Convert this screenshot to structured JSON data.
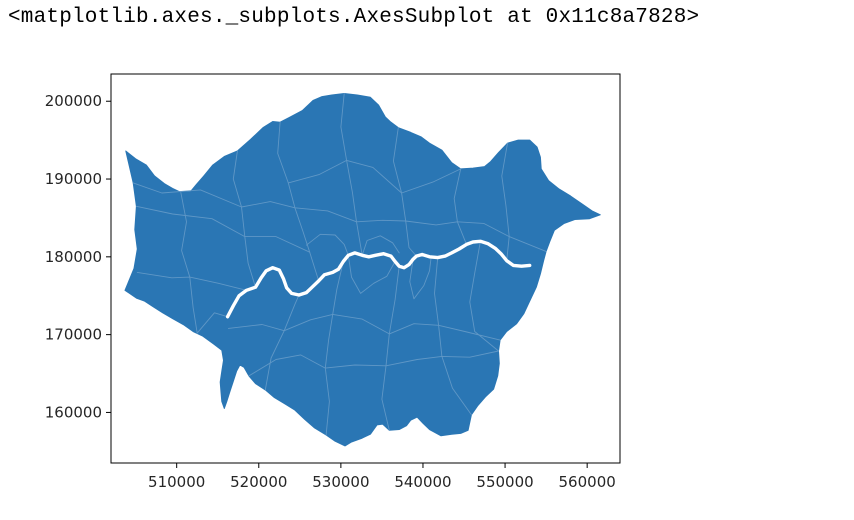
{
  "output": {
    "repr_text": "<matplotlib.axes._subplots.AxesSubplot at 0x11c8a7828>"
  },
  "colors": {
    "fill": "#2a76b4",
    "river": "#ffffff",
    "boundaries": "#5f97c6",
    "axes": "#000000",
    "tick_text": "#262626"
  },
  "chart_data": {
    "type": "map",
    "subject": "polygon map (matplotlib geopandas plot)",
    "xlim": [
      502000,
      564000
    ],
    "ylim": [
      153500,
      203500
    ],
    "x_ticks": [
      510000,
      520000,
      530000,
      540000,
      550000,
      560000
    ],
    "x_tick_labels": [
      "510000",
      "520000",
      "530000",
      "540000",
      "550000",
      "560000"
    ],
    "y_ticks": [
      160000,
      170000,
      180000,
      190000,
      200000
    ],
    "y_tick_labels": [
      "160000",
      "170000",
      "180000",
      "190000",
      "200000"
    ],
    "grid": false,
    "legend": "none",
    "outline": [
      [
        503700,
        175700
      ],
      [
        504800,
        178500
      ],
      [
        505200,
        181000
      ],
      [
        504900,
        183500
      ],
      [
        505100,
        186500
      ],
      [
        504700,
        189500
      ],
      [
        503800,
        193600
      ],
      [
        505000,
        192600
      ],
      [
        506300,
        191800
      ],
      [
        507300,
        190400
      ],
      [
        508500,
        189400
      ],
      [
        509500,
        188800
      ],
      [
        510500,
        188300
      ],
      [
        511700,
        188400
      ],
      [
        512400,
        189300
      ],
      [
        513300,
        190400
      ],
      [
        514400,
        191800
      ],
      [
        515800,
        192900
      ],
      [
        517400,
        193600
      ],
      [
        519000,
        195100
      ],
      [
        520500,
        196600
      ],
      [
        521700,
        197400
      ],
      [
        522600,
        197300
      ],
      [
        523700,
        197900
      ],
      [
        525300,
        198800
      ],
      [
        526600,
        200100
      ],
      [
        527700,
        200600
      ],
      [
        528900,
        200800
      ],
      [
        530400,
        201000
      ],
      [
        532000,
        200800
      ],
      [
        533600,
        200500
      ],
      [
        534600,
        199500
      ],
      [
        535400,
        198000
      ],
      [
        536000,
        197400
      ],
      [
        537000,
        196600
      ],
      [
        538500,
        196000
      ],
      [
        539800,
        195400
      ],
      [
        540800,
        194600
      ],
      [
        542300,
        193700
      ],
      [
        543500,
        192100
      ],
      [
        544600,
        191300
      ],
      [
        546100,
        191400
      ],
      [
        547500,
        191600
      ],
      [
        548200,
        192200
      ],
      [
        549200,
        193400
      ],
      [
        550300,
        194600
      ],
      [
        551600,
        195000
      ],
      [
        553000,
        195000
      ],
      [
        553900,
        194100
      ],
      [
        554300,
        192800
      ],
      [
        554400,
        191300
      ],
      [
        555300,
        189800
      ],
      [
        556600,
        188700
      ],
      [
        558000,
        187800
      ],
      [
        559500,
        186700
      ],
      [
        560600,
        185900
      ],
      [
        561600,
        185400
      ],
      [
        560300,
        184900
      ],
      [
        558500,
        184800
      ],
      [
        557200,
        184300
      ],
      [
        556000,
        183400
      ],
      [
        555500,
        182100
      ],
      [
        555000,
        180700
      ],
      [
        554700,
        179500
      ],
      [
        554300,
        177800
      ],
      [
        553800,
        176100
      ],
      [
        553000,
        174300
      ],
      [
        552300,
        172700
      ],
      [
        551400,
        171400
      ],
      [
        550200,
        170400
      ],
      [
        549400,
        169300
      ],
      [
        549200,
        167900
      ],
      [
        549300,
        166300
      ],
      [
        549100,
        164700
      ],
      [
        548600,
        163000
      ],
      [
        547600,
        162000
      ],
      [
        546700,
        160900
      ],
      [
        545900,
        159700
      ],
      [
        545500,
        157700
      ],
      [
        544600,
        157300
      ],
      [
        543500,
        157200
      ],
      [
        542200,
        157000
      ],
      [
        540800,
        157800
      ],
      [
        540000,
        158600
      ],
      [
        539300,
        159400
      ],
      [
        538500,
        159000
      ],
      [
        538000,
        158300
      ],
      [
        537100,
        157800
      ],
      [
        535900,
        157700
      ],
      [
        535100,
        158500
      ],
      [
        534400,
        158400
      ],
      [
        533600,
        157200
      ],
      [
        532600,
        156700
      ],
      [
        531300,
        156200
      ],
      [
        530500,
        155700
      ],
      [
        529300,
        156300
      ],
      [
        528200,
        157100
      ],
      [
        526800,
        158000
      ],
      [
        525600,
        159100
      ],
      [
        524400,
        160300
      ],
      [
        523200,
        161100
      ],
      [
        521900,
        161900
      ],
      [
        520800,
        162900
      ],
      [
        519600,
        163700
      ],
      [
        518800,
        164700
      ],
      [
        518200,
        165800
      ],
      [
        517700,
        166100
      ],
      [
        517300,
        165300
      ],
      [
        516900,
        164000
      ],
      [
        516500,
        162700
      ],
      [
        516100,
        161400
      ],
      [
        515800,
        160500
      ],
      [
        515500,
        161400
      ],
      [
        515400,
        162600
      ],
      [
        515300,
        163900
      ],
      [
        515500,
        165300
      ],
      [
        515700,
        166700
      ],
      [
        515500,
        168000
      ],
      [
        514500,
        168800
      ],
      [
        513200,
        169800
      ],
      [
        512000,
        170400
      ],
      [
        510800,
        171300
      ],
      [
        509600,
        172000
      ],
      [
        508300,
        172800
      ],
      [
        507100,
        173600
      ],
      [
        506100,
        174300
      ],
      [
        505100,
        174700
      ],
      [
        503700,
        175700
      ]
    ],
    "river_thames": [
      [
        516200,
        172300
      ],
      [
        516900,
        173700
      ],
      [
        517600,
        175000
      ],
      [
        518500,
        175700
      ],
      [
        519600,
        176100
      ],
      [
        520300,
        177300
      ],
      [
        520900,
        178200
      ],
      [
        521700,
        178600
      ],
      [
        522500,
        178300
      ],
      [
        523000,
        177200
      ],
      [
        523400,
        176000
      ],
      [
        524000,
        175300
      ],
      [
        524900,
        175100
      ],
      [
        525800,
        175400
      ],
      [
        526500,
        176100
      ],
      [
        527300,
        176900
      ],
      [
        528000,
        177700
      ],
      [
        529000,
        178000
      ],
      [
        529700,
        178400
      ],
      [
        530300,
        179400
      ],
      [
        530900,
        180200
      ],
      [
        531700,
        180500
      ],
      [
        532600,
        180200
      ],
      [
        533400,
        180000
      ],
      [
        534200,
        180200
      ],
      [
        535200,
        180400
      ],
      [
        536100,
        180100
      ],
      [
        536600,
        179400
      ],
      [
        537100,
        178800
      ],
      [
        537700,
        178600
      ],
      [
        538300,
        179000
      ],
      [
        538800,
        179700
      ],
      [
        539200,
        180100
      ],
      [
        539900,
        180300
      ],
      [
        540800,
        180000
      ],
      [
        541800,
        179900
      ],
      [
        542700,
        180100
      ],
      [
        543500,
        180500
      ],
      [
        544400,
        181000
      ],
      [
        545300,
        181600
      ],
      [
        546100,
        181900
      ],
      [
        547000,
        182000
      ],
      [
        547900,
        181700
      ],
      [
        548800,
        181100
      ],
      [
        549500,
        180400
      ],
      [
        550200,
        179500
      ],
      [
        551000,
        178900
      ],
      [
        552000,
        178800
      ],
      [
        553000,
        178900
      ]
    ],
    "borough_boundaries": [
      [
        [
          510500,
          188300
        ],
        [
          511200,
          184500
        ],
        [
          510600,
          180800
        ],
        [
          511600,
          177400
        ],
        [
          512000,
          173500
        ],
        [
          512500,
          170200
        ]
      ],
      [
        [
          517400,
          193600
        ],
        [
          516900,
          190000
        ],
        [
          517900,
          186400
        ],
        [
          518300,
          182600
        ],
        [
          518700,
          179200
        ],
        [
          519600,
          176100
        ]
      ],
      [
        [
          522600,
          197300
        ],
        [
          522300,
          193300
        ],
        [
          523600,
          189500
        ],
        [
          524400,
          186300
        ],
        [
          525400,
          183200
        ],
        [
          526200,
          180600
        ],
        [
          527300,
          176900
        ]
      ],
      [
        [
          530400,
          201000
        ],
        [
          530000,
          196700
        ],
        [
          530700,
          192400
        ],
        [
          531400,
          188300
        ],
        [
          531900,
          184500
        ],
        [
          532600,
          180200
        ]
      ],
      [
        [
          537000,
          196600
        ],
        [
          536400,
          192300
        ],
        [
          537400,
          188200
        ],
        [
          537900,
          184600
        ],
        [
          538300,
          181200
        ],
        [
          539200,
          180100
        ]
      ],
      [
        [
          544600,
          191300
        ],
        [
          543800,
          187500
        ],
        [
          544200,
          184500
        ],
        [
          545300,
          181600
        ]
      ],
      [
        [
          550300,
          194600
        ],
        [
          549600,
          190400
        ],
        [
          550100,
          186600
        ],
        [
          550500,
          182600
        ],
        [
          550200,
          179500
        ]
      ],
      [
        [
          505100,
          186500
        ],
        [
          509500,
          185500
        ],
        [
          514300,
          184900
        ],
        [
          518300,
          182600
        ],
        [
          522100,
          182600
        ],
        [
          526200,
          180600
        ]
      ],
      [
        [
          504700,
          189500
        ],
        [
          508200,
          188200
        ],
        [
          512900,
          188600
        ],
        [
          517900,
          186400
        ],
        [
          521400,
          187100
        ],
        [
          524400,
          186300
        ],
        [
          528400,
          185900
        ],
        [
          531900,
          184500
        ],
        [
          535100,
          184700
        ],
        [
          537900,
          184600
        ],
        [
          541600,
          184100
        ],
        [
          544200,
          184500
        ],
        [
          547400,
          184300
        ],
        [
          550500,
          182600
        ],
        [
          555000,
          180700
        ]
      ],
      [
        [
          523600,
          189500
        ],
        [
          527400,
          190600
        ],
        [
          530700,
          192400
        ],
        [
          533900,
          191500
        ],
        [
          537400,
          188200
        ],
        [
          541200,
          189600
        ],
        [
          544600,
          191300
        ]
      ],
      [
        [
          505200,
          178000
        ],
        [
          509400,
          177300
        ],
        [
          511600,
          177400
        ],
        [
          515100,
          176600
        ],
        [
          518500,
          175700
        ]
      ],
      [
        [
          512500,
          170200
        ],
        [
          514600,
          172800
        ],
        [
          516200,
          172300
        ]
      ],
      [
        [
          520800,
          162900
        ],
        [
          521500,
          167000
        ],
        [
          523100,
          170500
        ],
        [
          524400,
          173900
        ],
        [
          524900,
          175100
        ]
      ],
      [
        [
          528200,
          157100
        ],
        [
          528600,
          161400
        ],
        [
          528100,
          165700
        ],
        [
          528500,
          169300
        ],
        [
          529000,
          172600
        ],
        [
          529500,
          175800
        ],
        [
          530300,
          179400
        ]
      ],
      [
        [
          535900,
          157700
        ],
        [
          535000,
          161700
        ],
        [
          535500,
          166000
        ],
        [
          535900,
          170100
        ],
        [
          536600,
          174500
        ],
        [
          537100,
          178800
        ]
      ],
      [
        [
          545900,
          159700
        ],
        [
          543600,
          163100
        ],
        [
          542300,
          167200
        ],
        [
          541900,
          171200
        ],
        [
          541400,
          175300
        ],
        [
          541800,
          179900
        ]
      ],
      [
        [
          549200,
          167900
        ],
        [
          546300,
          170400
        ],
        [
          545700,
          174200
        ],
        [
          546300,
          177900
        ],
        [
          547000,
          182000
        ]
      ],
      [
        [
          518800,
          164700
        ],
        [
          522100,
          166800
        ],
        [
          525100,
          167400
        ],
        [
          528100,
          165700
        ],
        [
          531700,
          166100
        ],
        [
          535500,
          166000
        ],
        [
          539300,
          166800
        ],
        [
          542300,
          167200
        ],
        [
          545700,
          167100
        ],
        [
          549200,
          167900
        ]
      ],
      [
        [
          516300,
          170800
        ],
        [
          520400,
          171300
        ],
        [
          523100,
          170500
        ],
        [
          526300,
          171900
        ],
        [
          529000,
          172600
        ],
        [
          532600,
          172000
        ],
        [
          535900,
          170100
        ],
        [
          538900,
          171400
        ],
        [
          541900,
          171200
        ],
        [
          545100,
          170400
        ],
        [
          549400,
          169300
        ]
      ],
      [
        [
          530900,
          180200
        ],
        [
          531300,
          177400
        ],
        [
          532400,
          175300
        ],
        [
          534000,
          176600
        ],
        [
          535600,
          177500
        ],
        [
          536600,
          179400
        ]
      ],
      [
        [
          538800,
          179700
        ],
        [
          538400,
          176800
        ],
        [
          538900,
          174600
        ],
        [
          540100,
          176300
        ],
        [
          540800,
          178200
        ],
        [
          541000,
          180000
        ]
      ],
      [
        [
          525800,
          181500
        ],
        [
          527500,
          182900
        ],
        [
          529300,
          182800
        ],
        [
          530400,
          181600
        ],
        [
          530900,
          180200
        ]
      ],
      [
        [
          532600,
          180200
        ],
        [
          533200,
          182100
        ],
        [
          534800,
          182700
        ],
        [
          536300,
          181800
        ],
        [
          537100,
          180500
        ]
      ]
    ]
  }
}
